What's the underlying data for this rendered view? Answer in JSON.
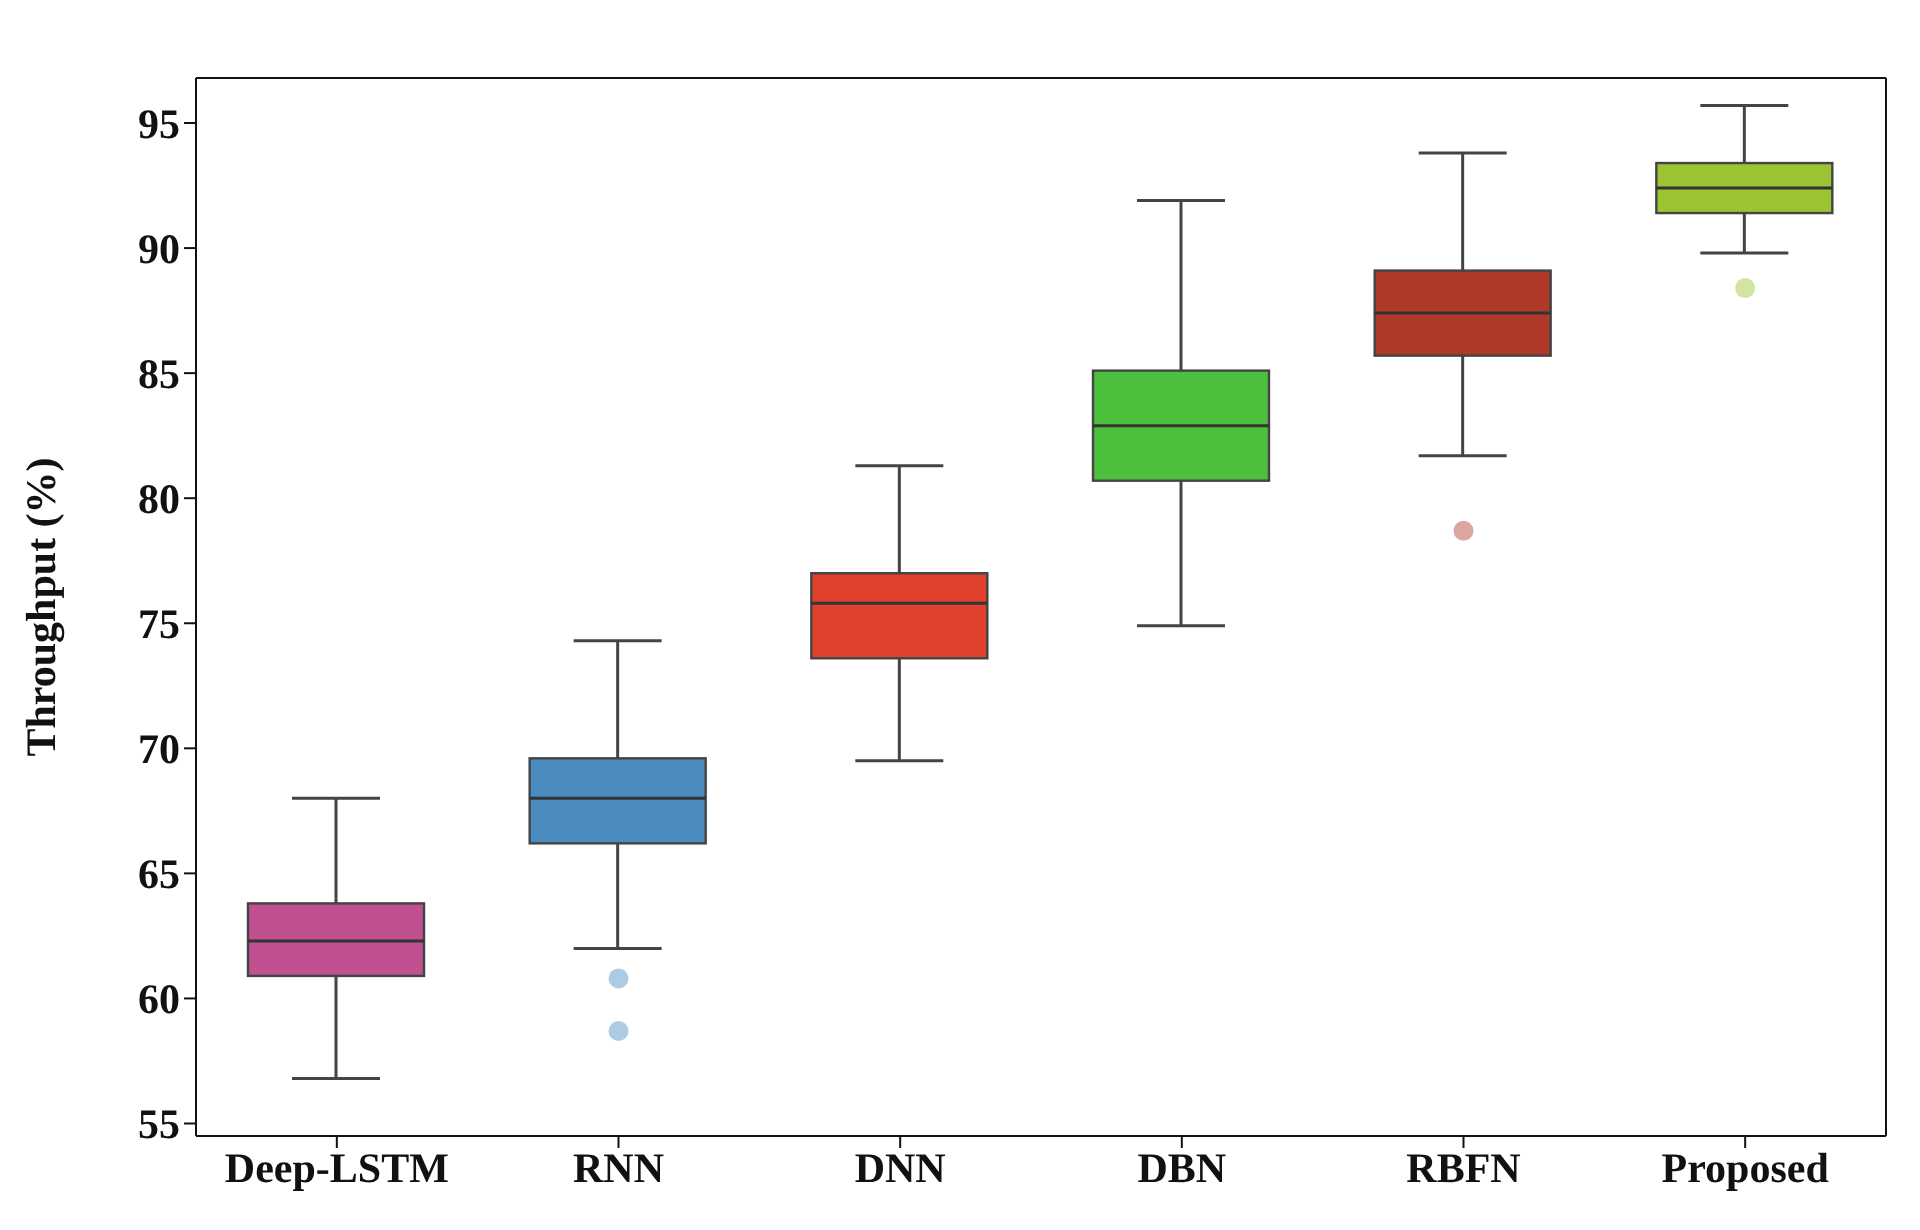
{
  "chart_data": {
    "type": "box",
    "ylabel": "Throughput (%)",
    "categories": [
      "Deep-LSTM",
      "RNN",
      "DNN",
      "DBN",
      "RBFN",
      "Proposed"
    ],
    "colors": [
      "#c0508f",
      "#4a8cc0",
      "#e0412e",
      "#4cbf3c",
      "#b03a2a",
      "#9ac431"
    ],
    "boxes": [
      {
        "low": 56.8,
        "q1": 60.9,
        "median": 62.3,
        "q3": 63.8,
        "high": 68.0
      },
      {
        "low": 62.0,
        "q1": 66.2,
        "median": 68.0,
        "q3": 69.6,
        "high": 74.3,
        "outliers": [
          60.8,
          58.7
        ]
      },
      {
        "low": 69.5,
        "q1": 73.6,
        "median": 75.8,
        "q3": 77.0,
        "high": 81.3
      },
      {
        "low": 74.9,
        "q1": 80.7,
        "median": 82.9,
        "q3": 85.1,
        "high": 91.9
      },
      {
        "low": 81.7,
        "q1": 85.7,
        "median": 87.4,
        "q3": 89.1,
        "high": 93.8,
        "outliers": [
          78.7
        ]
      },
      {
        "low": 89.8,
        "q1": 91.4,
        "median": 92.4,
        "q3": 93.4,
        "high": 95.7,
        "outliers": [
          88.4
        ]
      }
    ],
    "ylim": [
      54.5,
      96.8
    ],
    "yticks": [
      55,
      60,
      65,
      70,
      75,
      80,
      85,
      90,
      95
    ],
    "grid": false,
    "legend": false
  }
}
